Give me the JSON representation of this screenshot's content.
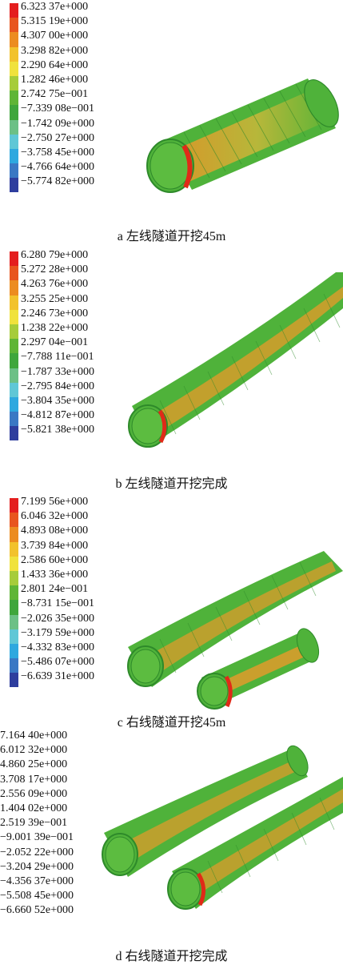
{
  "colors": {
    "legend_scale": [
      "#e41e1e",
      "#e8551e",
      "#ec8c20",
      "#f2c22c",
      "#f0e23c",
      "#a6cc3a",
      "#5fb536",
      "#3fa63c",
      "#6cc086",
      "#5fc7d6",
      "#2ea8df",
      "#3a78c4",
      "#2e3e9e"
    ],
    "tunnel_body": "#4fb23a",
    "tunnel_warm": "#e89a2a",
    "tunnel_hot": "#e02a18",
    "outline": "#2e8a2a"
  },
  "panels": [
    {
      "caption": "a 左线隧道开挖45m",
      "legend": [
        "6.323 37e+000",
        "5.315 19e+000",
        "4.307 00e+000",
        "3.298 82e+000",
        "2.290 64e+000",
        "1.282 46e+000",
        "2.742 75e−001",
        "−7.339 08e−001",
        "−1.742 09e+000",
        "−2.750 27e+000",
        "−3.758 45e+000",
        "−4.766 64e+000",
        "−5.774 82e+000"
      ]
    },
    {
      "caption": "b 左线隧道开挖完成",
      "legend": [
        "6.280 79e+000",
        "5.272 28e+000",
        "4.263 76e+000",
        "3.255 25e+000",
        "2.246 73e+000",
        "1.238 22e+000",
        "2.297 04e−001",
        "−7.788 11e−001",
        "−1.787 33e+000",
        "−2.795 84e+000",
        "−3.804 35e+000",
        "−4.812 87e+000",
        "−5.821 38e+000"
      ]
    },
    {
      "caption": "c 右线隧道开挖45m",
      "legend": [
        "7.199 56e+000",
        "6.046 32e+000",
        "4.893 08e+000",
        "3.739 84e+000",
        "2.586 60e+000",
        "1.433 36e+000",
        "2.801 24e−001",
        "−8.731 15e−001",
        "−2.026 35e+000",
        "−3.179 59e+000",
        "−4.332 83e+000",
        "−5.486 07e+000",
        "−6.639 31e+000"
      ]
    },
    {
      "caption": "d 右线隧道开挖完成",
      "legend": [
        "7.164 40e+000",
        "6.012 32e+000",
        "4.860 25e+000",
        "3.708 17e+000",
        "2.556 09e+000",
        "1.404 02e+000",
        "2.519 39e−001",
        "−9.001 39e−001",
        "−2.052 22e+000",
        "−3.204 29e+000",
        "−4.356 37e+000",
        "−5.508 45e+000",
        "−6.660 52e+000"
      ]
    }
  ]
}
